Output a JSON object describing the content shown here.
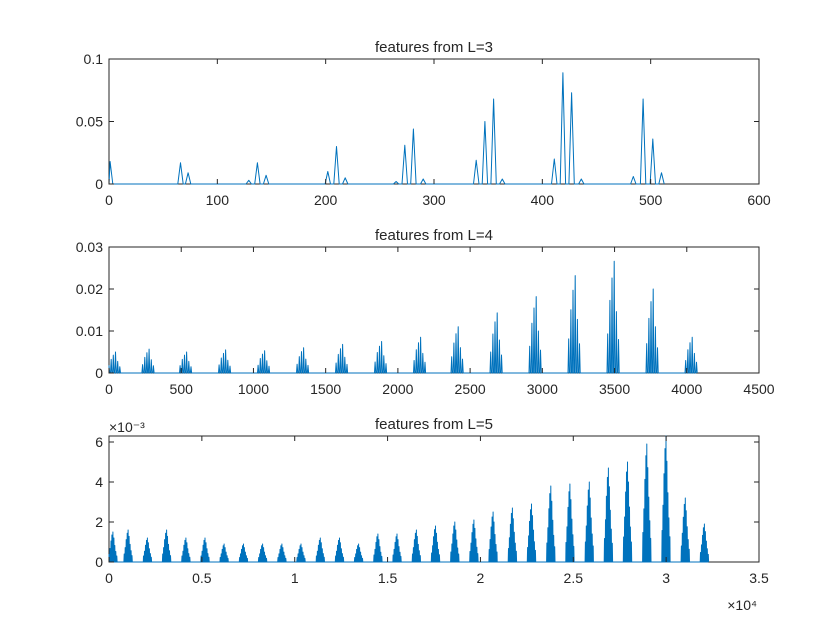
{
  "colors": {
    "line": "#0072BD",
    "axes": "#262626",
    "background": "#ffffff"
  },
  "chart_data": [
    {
      "type": "line",
      "title": "features from L=3",
      "xlabel": "",
      "ylabel": "",
      "xlim": [
        0,
        600
      ],
      "ylim": [
        0,
        0.1
      ],
      "xticks": [
        0,
        100,
        200,
        300,
        400,
        500,
        600
      ],
      "xtick_labels": [
        "0",
        "100",
        "200",
        "300",
        "400",
        "500",
        "600"
      ],
      "yticks": [
        0,
        0.05,
        0.1
      ],
      "ytick_labels": [
        "0",
        "0.05",
        "0.1"
      ],
      "x_exponent": "",
      "y_exponent": "",
      "grid": false,
      "peaks": [
        {
          "x": 1,
          "y": 0.018
        },
        {
          "x": 66,
          "y": 0.017
        },
        {
          "x": 73,
          "y": 0.009
        },
        {
          "x": 129,
          "y": 0.003
        },
        {
          "x": 137,
          "y": 0.017
        },
        {
          "x": 145,
          "y": 0.007
        },
        {
          "x": 202,
          "y": 0.01
        },
        {
          "x": 210,
          "y": 0.03
        },
        {
          "x": 218,
          "y": 0.005
        },
        {
          "x": 265,
          "y": 0.002
        },
        {
          "x": 273,
          "y": 0.031
        },
        {
          "x": 281,
          "y": 0.044
        },
        {
          "x": 290,
          "y": 0.004
        },
        {
          "x": 339,
          "y": 0.019
        },
        {
          "x": 347,
          "y": 0.05
        },
        {
          "x": 355,
          "y": 0.068
        },
        {
          "x": 363,
          "y": 0.004
        },
        {
          "x": 411,
          "y": 0.02
        },
        {
          "x": 419,
          "y": 0.089
        },
        {
          "x": 427,
          "y": 0.073
        },
        {
          "x": 436,
          "y": 0.004
        },
        {
          "x": 484,
          "y": 0.006
        },
        {
          "x": 493,
          "y": 0.068
        },
        {
          "x": 502,
          "y": 0.036
        },
        {
          "x": 510,
          "y": 0.009
        }
      ]
    },
    {
      "type": "line",
      "title": "features from L=4",
      "xlabel": "",
      "ylabel": "",
      "xlim": [
        0,
        4500
      ],
      "ylim": [
        0,
        0.03
      ],
      "xticks": [
        0,
        500,
        1000,
        1500,
        2000,
        2500,
        3000,
        3500,
        4000,
        4500
      ],
      "xtick_labels": [
        "0",
        "500",
        "1000",
        "1500",
        "2000",
        "2500",
        "3000",
        "3500",
        "4000",
        "4500"
      ],
      "yticks": [
        0,
        0.01,
        0.02,
        0.03
      ],
      "ytick_labels": [
        "0",
        "0.01",
        "0.02",
        "0.03"
      ],
      "x_exponent": "",
      "y_exponent": "",
      "grid": false,
      "groups": {
        "centers": [
          0,
          270,
          530,
          800,
          1070,
          1340,
          1610,
          1880,
          2150,
          2410,
          2680,
          2950,
          3220,
          3490,
          3760,
          4030
        ],
        "peak_heights": [
          0.005,
          0.0057,
          0.005,
          0.0055,
          0.0053,
          0.006,
          0.0068,
          0.0075,
          0.0085,
          0.011,
          0.0143,
          0.0182,
          0.0232,
          0.0266,
          0.02,
          0.0085
        ],
        "spread": 75,
        "profile": [
          0.35,
          0.65,
          0.85,
          1.0,
          0.55,
          0.3
        ]
      }
    },
    {
      "type": "line",
      "title": "features from L=5",
      "xlabel": "",
      "ylabel": "",
      "xlim": [
        0,
        35000
      ],
      "ylim": [
        0,
        0.0063
      ],
      "xticks": [
        0,
        5000,
        10000,
        15000,
        20000,
        25000,
        30000,
        35000
      ],
      "xtick_labels": [
        "0",
        "0.5",
        "1",
        "1.5",
        "2",
        "2.5",
        "3",
        "3.5"
      ],
      "yticks": [
        0,
        0.002,
        0.004,
        0.006
      ],
      "ytick_labels": [
        "0",
        "2",
        "4",
        "6"
      ],
      "x_exponent": "×10⁴",
      "y_exponent": "×10⁻³",
      "grid": false,
      "groups": {
        "centers": [
          0,
          1030,
          2070,
          3100,
          4140,
          5170,
          6200,
          7240,
          8270,
          9310,
          10340,
          11380,
          12410,
          13440,
          14480,
          15510,
          16550,
          17580,
          18620,
          19650,
          20680,
          21720,
          22750,
          23790,
          24820,
          25860,
          26890,
          27920,
          28960,
          29990,
          31030,
          32060
        ],
        "peak_heights": [
          0.0015,
          0.0016,
          0.0012,
          0.0016,
          0.0012,
          0.0012,
          0.0009,
          0.0009,
          0.0009,
          0.0009,
          0.0009,
          0.0012,
          0.0012,
          0.0009,
          0.0014,
          0.0014,
          0.0016,
          0.0018,
          0.002,
          0.0021,
          0.0025,
          0.0027,
          0.0029,
          0.0038,
          0.0039,
          0.004,
          0.0047,
          0.005,
          0.0059,
          0.0063,
          0.0032,
          0.0019
        ],
        "spread": 420,
        "profile": [
          0.25,
          0.45,
          0.7,
          0.9,
          1.0,
          0.8,
          0.55,
          0.35,
          0.2
        ]
      }
    }
  ]
}
